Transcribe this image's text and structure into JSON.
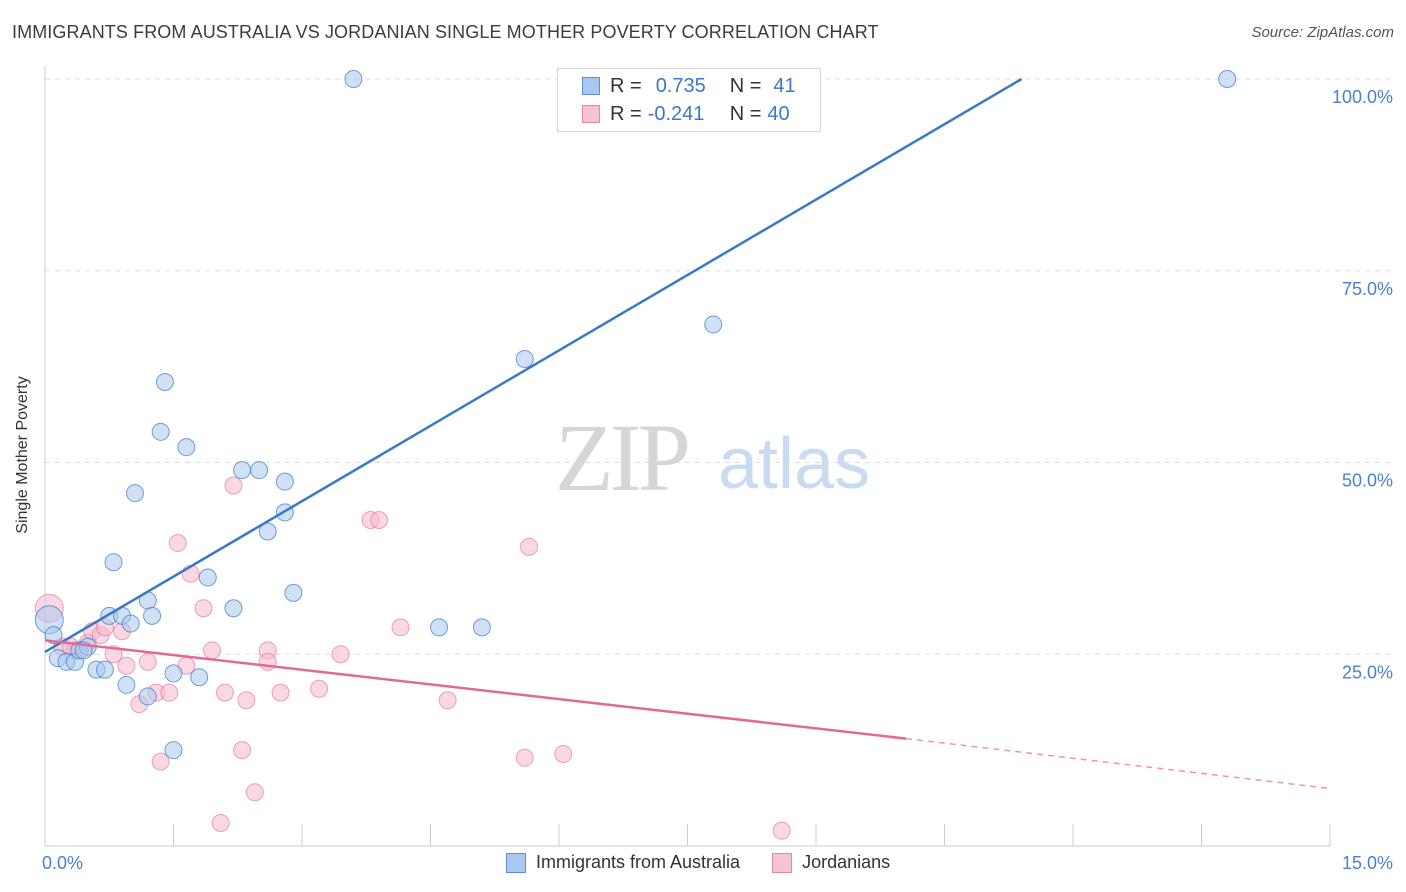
{
  "title": "IMMIGRANTS FROM AUSTRALIA VS JORDANIAN SINGLE MOTHER POVERTY CORRELATION CHART",
  "source": "Source: ZipAtlas.com",
  "watermark": {
    "zip": "ZIP",
    "atlas": "atlas"
  },
  "legend": {
    "row1": {
      "r_label": "R =",
      "r_value": "0.735",
      "n_label": "N =",
      "n_value": "41"
    },
    "row2": {
      "r_label": "R =",
      "r_value": "-0.241",
      "n_label": "N =",
      "n_value": "40"
    }
  },
  "bottom_legend": {
    "series1": "Immigrants from Australia",
    "series2": "Jordanians"
  },
  "colors": {
    "blue": "#3a78c9",
    "blue_fill": "#a9c8ef",
    "pink": "#e06a95",
    "pink_fill": "#f6b8cc",
    "grid": "#dddddd",
    "tick_label": "#4a7fd0"
  },
  "chart_data": {
    "type": "scatter",
    "title": "IMMIGRANTS FROM AUSTRALIA VS JORDANIAN SINGLE MOTHER POVERTY CORRELATION CHART",
    "xlabel": "",
    "ylabel": "Single Mother Poverty",
    "xlim": [
      0,
      15
    ],
    "ylim": [
      0,
      100
    ],
    "x_tick_labels": [
      "0.0%",
      "15.0%"
    ],
    "y_ticks": [
      25,
      50,
      75,
      100
    ],
    "y_tick_labels": [
      "25.0%",
      "50.0%",
      "75.0%",
      "100.0%"
    ],
    "grid": true,
    "series": [
      {
        "name": "Immigrants from Australia",
        "color": "#3a78c9",
        "points": [
          [
            0.05,
            29.5
          ],
          [
            0.1,
            27.5
          ],
          [
            0.15,
            24.5
          ],
          [
            0.25,
            24.0
          ],
          [
            0.35,
            24.0
          ],
          [
            0.4,
            25.5
          ],
          [
            0.5,
            26.0
          ],
          [
            0.6,
            23.0
          ],
          [
            0.7,
            23.0
          ],
          [
            0.75,
            30.0
          ],
          [
            0.8,
            37.0
          ],
          [
            0.9,
            30.0
          ],
          [
            0.95,
            21.0
          ],
          [
            1.0,
            29.0
          ],
          [
            1.05,
            46.0
          ],
          [
            1.2,
            32.0
          ],
          [
            1.25,
            30.0
          ],
          [
            1.35,
            54.0
          ],
          [
            1.4,
            60.5
          ],
          [
            1.5,
            22.5
          ],
          [
            1.5,
            12.5
          ],
          [
            1.65,
            52.0
          ],
          [
            1.8,
            22.0
          ],
          [
            1.9,
            35.0
          ],
          [
            2.2,
            31.0
          ],
          [
            2.3,
            49.0
          ],
          [
            2.5,
            49.0
          ],
          [
            2.6,
            41.0
          ],
          [
            2.8,
            47.5
          ],
          [
            2.8,
            43.5
          ],
          [
            2.9,
            33.0
          ],
          [
            3.6,
            100.0
          ],
          [
            4.6,
            28.5
          ],
          [
            5.1,
            28.5
          ],
          [
            5.6,
            63.5
          ],
          [
            6.3,
            100.0
          ],
          [
            6.6,
            100.0
          ],
          [
            7.8,
            68.0
          ],
          [
            13.8,
            100.0
          ],
          [
            1.2,
            19.5
          ],
          [
            0.45,
            25.5
          ]
        ],
        "trend": {
          "x": [
            0,
            11.4
          ],
          "y": [
            25.3,
            100.0
          ]
        }
      },
      {
        "name": "Jordanians",
        "color": "#e06a95",
        "points": [
          [
            0.05,
            31.0
          ],
          [
            0.2,
            26.0
          ],
          [
            0.35,
            25.5
          ],
          [
            0.5,
            26.5
          ],
          [
            0.55,
            28.0
          ],
          [
            0.65,
            27.5
          ],
          [
            0.7,
            28.5
          ],
          [
            0.8,
            25.0
          ],
          [
            0.9,
            28.0
          ],
          [
            0.95,
            23.5
          ],
          [
            1.1,
            18.5
          ],
          [
            1.2,
            24.0
          ],
          [
            1.3,
            20.0
          ],
          [
            1.35,
            11.0
          ],
          [
            1.45,
            20.0
          ],
          [
            1.55,
            39.5
          ],
          [
            1.65,
            23.5
          ],
          [
            1.7,
            35.5
          ],
          [
            1.85,
            31.0
          ],
          [
            1.95,
            25.5
          ],
          [
            2.05,
            3.0
          ],
          [
            2.1,
            20.0
          ],
          [
            2.2,
            47.0
          ],
          [
            2.3,
            12.5
          ],
          [
            2.35,
            19.0
          ],
          [
            2.45,
            7.0
          ],
          [
            2.6,
            25.5
          ],
          [
            2.6,
            24.0
          ],
          [
            2.75,
            20.0
          ],
          [
            3.2,
            20.5
          ],
          [
            3.45,
            25.0
          ],
          [
            3.8,
            42.5
          ],
          [
            3.9,
            42.5
          ],
          [
            4.15,
            28.5
          ],
          [
            4.7,
            19.0
          ],
          [
            5.6,
            11.5
          ],
          [
            5.65,
            39.0
          ],
          [
            6.05,
            12.0
          ],
          [
            8.6,
            2.0
          ],
          [
            0.3,
            26.0
          ]
        ],
        "trend_solid": {
          "x": [
            0,
            10.05
          ],
          "y": [
            26.8,
            14.0
          ]
        },
        "trend_dashed": {
          "x": [
            10.05,
            15.0
          ],
          "y": [
            14.0,
            7.5
          ]
        }
      }
    ]
  }
}
